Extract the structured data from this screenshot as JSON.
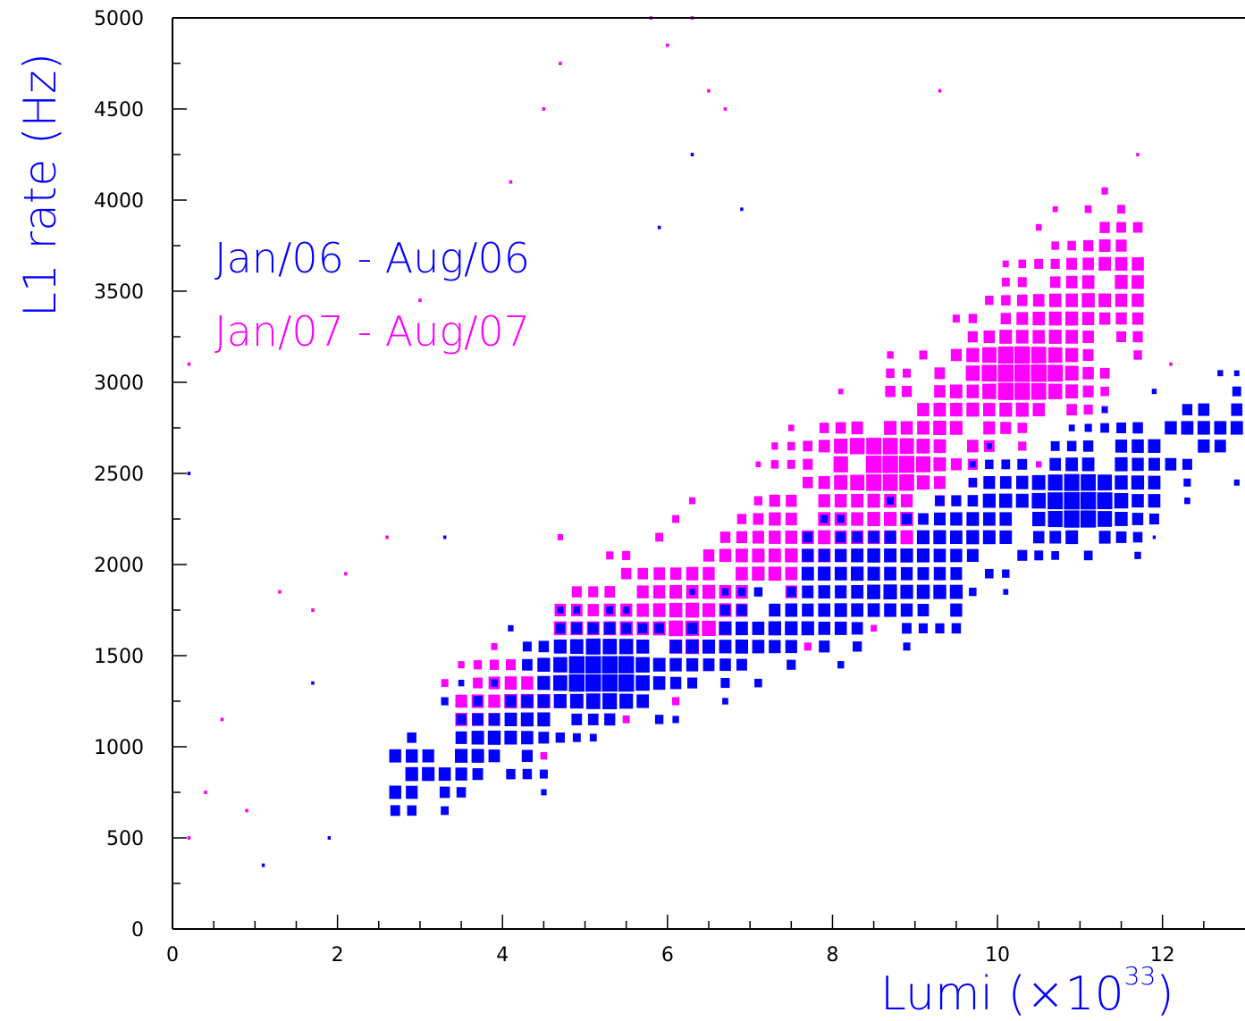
{
  "chart_data": {
    "type": "heatmap",
    "subtype": "2D box histogram (box area proportional to counts)",
    "xlabel": "Lumi (×10",
    "xlabel_sup": "33",
    "xlabel_close": ")",
    "ylabel": "L1 rate (Hz)",
    "xlim": [
      0,
      13.0
    ],
    "ylim": [
      0,
      5000
    ],
    "x_ticks": [
      "0",
      "2",
      "4",
      "6",
      "8",
      "10",
      "12"
    ],
    "y_ticks": [
      "0",
      "500",
      "1000",
      "1500",
      "2000",
      "2500",
      "3000",
      "3500",
      "4000",
      "4500",
      "5000"
    ],
    "x_bin_width": 0.2,
    "y_bin_width": 100,
    "colors": {
      "series_2006": "#0000ff",
      "series_2007": "#ff00ff",
      "axes": "#000000",
      "ylabel": "#0000ff",
      "xlabel": "#0000ff"
    },
    "series": [
      {
        "name": "Jan/06 - Aug/06",
        "color": "#0000ff",
        "ridges": [
          {
            "x": [
              3.0,
              5.2
            ],
            "y": [
              800,
              1350
            ],
            "width": 180
          },
          {
            "x": [
              4.8,
              9.0
            ],
            "y": [
              1300,
              1800
            ],
            "width": 180
          },
          {
            "x": [
              8.0,
              11.5
            ],
            "y": [
              1900,
              2400
            ],
            "width": 200
          },
          {
            "x": [
              10.0,
              12.5
            ],
            "y": [
              2300,
              2700
            ],
            "width": 160
          }
        ],
        "peaks": [
          {
            "x": 5.1,
            "y": 1350,
            "size": 1.0
          },
          {
            "x": 10.9,
            "y": 2300,
            "size": 0.95
          },
          {
            "x": 8.6,
            "y": 1800,
            "size": 0.6
          },
          {
            "x": 3.9,
            "y": 1000,
            "size": 0.55
          }
        ],
        "scatter": [
          {
            "x": 1.0,
            "y": 300
          },
          {
            "x": 0.1,
            "y": 2450
          },
          {
            "x": 1.6,
            "y": 1300
          },
          {
            "x": 1.8,
            "y": 450
          },
          {
            "x": 3.2,
            "y": 2100
          },
          {
            "x": 5.8,
            "y": 3800
          },
          {
            "x": 6.2,
            "y": 4200
          },
          {
            "x": 6.8,
            "y": 3900
          },
          {
            "x": 11.8,
            "y": 2100
          },
          {
            "x": 12.2,
            "y": 2800
          }
        ]
      },
      {
        "name": "Jan/07 - Aug/07",
        "color": "#ff00ff",
        "ridges": [
          {
            "x": [
              3.8,
              5.0
            ],
            "y": [
              1150,
              1250
            ],
            "width": 120
          },
          {
            "x": [
              5.0,
              8.5
            ],
            "y": [
              1500,
              2200
            ],
            "width": 320
          },
          {
            "x": [
              7.5,
              10.5
            ],
            "y": [
              2000,
              3200
            ],
            "width": 360
          },
          {
            "x": [
              9.0,
              11.2
            ],
            "y": [
              2600,
              3500
            ],
            "width": 300
          }
        ],
        "peaks": [
          {
            "x": 10.2,
            "y": 3000,
            "size": 1.0
          },
          {
            "x": 8.5,
            "y": 2500,
            "size": 0.95
          },
          {
            "x": 6.2,
            "y": 1600,
            "size": 0.7
          },
          {
            "x": 4.2,
            "y": 1200,
            "size": 0.6
          }
        ],
        "scatter": [
          {
            "x": 0.1,
            "y": 450
          },
          {
            "x": 0.3,
            "y": 700
          },
          {
            "x": 0.8,
            "y": 600
          },
          {
            "x": 0.5,
            "y": 1100
          },
          {
            "x": 1.2,
            "y": 1800
          },
          {
            "x": 1.6,
            "y": 1700
          },
          {
            "x": 2.0,
            "y": 1900
          },
          {
            "x": 2.5,
            "y": 2100
          },
          {
            "x": 2.9,
            "y": 3400
          },
          {
            "x": 4.0,
            "y": 4050
          },
          {
            "x": 4.4,
            "y": 4450
          },
          {
            "x": 4.6,
            "y": 4700
          },
          {
            "x": 5.7,
            "y": 4950
          },
          {
            "x": 5.9,
            "y": 4800
          },
          {
            "x": 6.2,
            "y": 4950
          },
          {
            "x": 6.4,
            "y": 4550
          },
          {
            "x": 6.6,
            "y": 4450
          },
          {
            "x": 9.2,
            "y": 4550
          },
          {
            "x": 11.6,
            "y": 4200
          },
          {
            "x": 12.0,
            "y": 3050
          },
          {
            "x": 0.1,
            "y": 3050
          }
        ]
      }
    ],
    "legend_placement": "upper-left inside plot",
    "grid": false
  }
}
